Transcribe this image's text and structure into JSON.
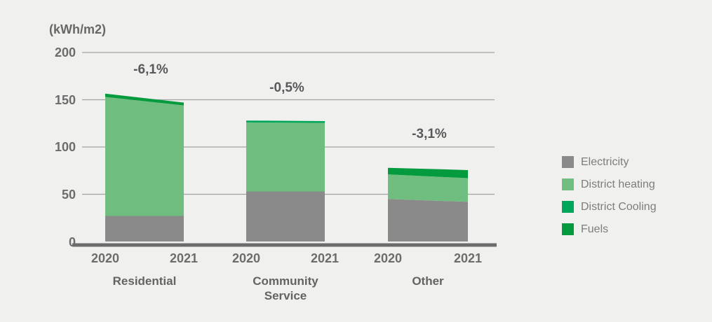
{
  "chart_data": {
    "type": "area",
    "stacked": true,
    "title": "(kWh/m2)",
    "ylabel": "(kWh/m2)",
    "xlabel": "",
    "ylim": [
      0,
      200
    ],
    "grid": true,
    "legend_position": "right",
    "years": [
      "2020",
      "2021"
    ],
    "y_axis": {
      "ticks": [
        0,
        50,
        100,
        150,
        200
      ],
      "tick_labels": [
        "0",
        "50",
        "100",
        "150",
        "200"
      ]
    },
    "series": [
      {
        "name": "Electricity",
        "color": "#8a8a8a"
      },
      {
        "name": "District heating",
        "color": "#70bd80"
      },
      {
        "name": "District Cooling",
        "color": "#00a75b"
      },
      {
        "name": "Fuels",
        "color": "#049b3f"
      }
    ],
    "groups": [
      {
        "category": "Residential",
        "category_line1": "Residential",
        "category_line2": "",
        "change_label": "-6,1%",
        "values_2020": [
          27,
          126,
          0,
          3.5
        ],
        "values_2021": [
          27,
          117,
          0,
          3
        ],
        "total_2020": 156.5,
        "total_2021": 147
      },
      {
        "category": "Community Service",
        "category_line1": "Community",
        "category_line2": "Service",
        "change_label": "-0,5%",
        "values_2020": [
          53,
          73,
          2,
          0
        ],
        "values_2021": [
          53,
          72.5,
          1.9,
          0
        ],
        "total_2020": 128,
        "total_2021": 127.4
      },
      {
        "category": "Other",
        "category_line1": "Other",
        "category_line2": "",
        "change_label": "-3,1%",
        "values_2020": [
          45,
          26,
          0,
          7
        ],
        "values_2021": [
          42,
          25,
          0,
          8.6
        ],
        "total_2020": 78,
        "total_2021": 75.6
      }
    ],
    "colors": {
      "background": "#f0f0ee",
      "gridline": "#a3a3a3",
      "axis_line": "#6b6b6b",
      "label_text": "#6a6a6a",
      "annotation_text": "#58595b",
      "legend_text": "#7d7d7d"
    }
  }
}
